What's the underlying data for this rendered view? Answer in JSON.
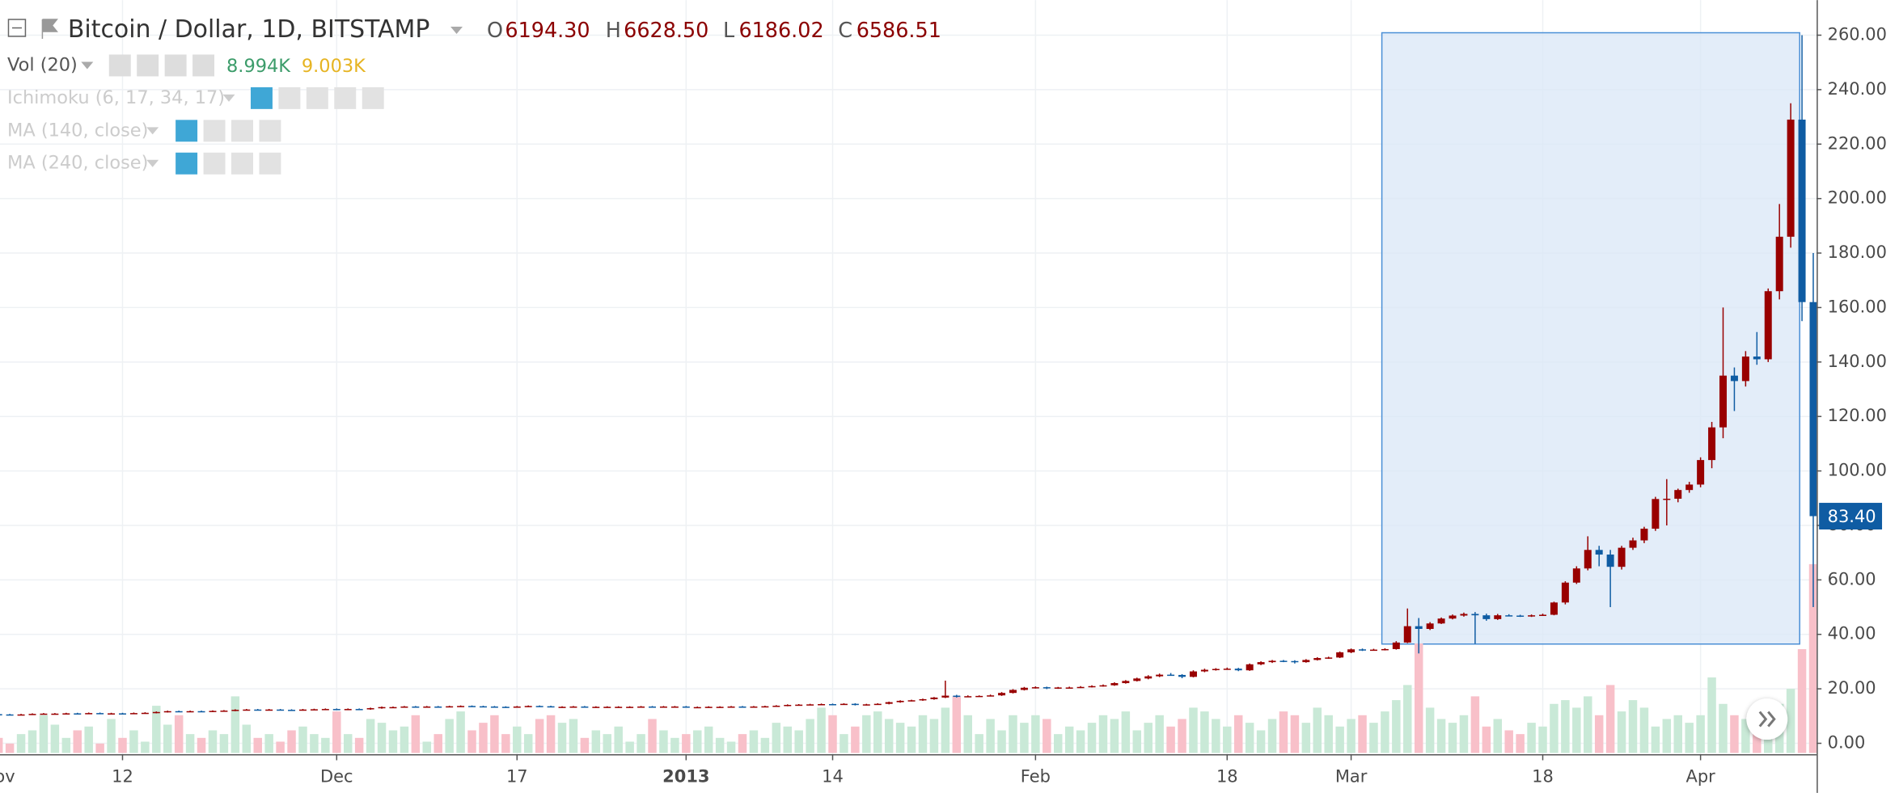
{
  "chart_data": {
    "type": "candlestick",
    "title": "Bitcoin / Dollar, 1D, BITSTAMP",
    "header": {
      "o_label": "O",
      "o": "6194.30",
      "h_label": "H",
      "h": "6628.50",
      "l_label": "L",
      "l": "6186.02",
      "c_label": "C",
      "c": "6586.51"
    },
    "indicators": [
      "Vol (20)",
      "Ichimoku (6, 17, 34, 17)",
      "MA (140, close)",
      "MA (240, close)"
    ],
    "volume_readings": [
      "8.994K",
      "9.003K"
    ],
    "last_label": "83.40",
    "up_color": "#990000",
    "down_color": "#0f5ca3",
    "volume_up_color": "#c9e9d7",
    "volume_down_color": "#f8c0c9",
    "grid": true,
    "xlim": [
      0.13,
      161.3
    ],
    "xticks": [
      {
        "value": 0,
        "label": "Nov"
      },
      {
        "value": 11,
        "label": "12"
      },
      {
        "value": 30,
        "label": "Dec"
      },
      {
        "value": 46,
        "label": "17"
      },
      {
        "value": 61,
        "label": "2013"
      },
      {
        "value": 74,
        "label": "14"
      },
      {
        "value": 92,
        "label": "Feb"
      },
      {
        "value": 109,
        "label": "18"
      },
      {
        "value": 120,
        "label": "Mar"
      },
      {
        "value": 137,
        "label": "18"
      },
      {
        "value": 151,
        "label": "Apr"
      }
    ],
    "ylim": [
      0,
      260
    ],
    "yticks": [
      {
        "value": 0,
        "label": "0.00"
      },
      {
        "value": 20,
        "label": "20.00"
      },
      {
        "value": 40,
        "label": "40.00"
      },
      {
        "value": 60,
        "label": "60.00"
      },
      {
        "value": 80,
        "label": "80.00"
      },
      {
        "value": 100,
        "label": "100.00"
      },
      {
        "value": 120,
        "label": "120.00"
      },
      {
        "value": 140,
        "label": "140.00"
      },
      {
        "value": 160,
        "label": "160.00"
      },
      {
        "value": 180,
        "label": "180.00"
      },
      {
        "value": 200,
        "label": "200.00"
      },
      {
        "value": 220,
        "label": "220.00"
      },
      {
        "value": 240,
        "label": "240.00"
      },
      {
        "value": 260,
        "label": "260.00"
      }
    ],
    "volume_ylim": [
      0,
      100
    ],
    "ohlc": [
      [
        10.7,
        10.9,
        10.4,
        10.6
      ],
      [
        10.6,
        10.8,
        10.3,
        10.5
      ],
      [
        10.5,
        10.8,
        10.3,
        10.6
      ],
      [
        10.6,
        11.0,
        10.4,
        10.8
      ],
      [
        10.8,
        11.1,
        10.6,
        10.9
      ],
      [
        10.9,
        11.1,
        10.7,
        10.9
      ],
      [
        10.9,
        11.2,
        10.7,
        11.0
      ],
      [
        11.0,
        11.2,
        10.7,
        10.9
      ],
      [
        10.9,
        11.3,
        10.7,
        11.1
      ],
      [
        11.1,
        11.3,
        10.8,
        11.0
      ],
      [
        11.0,
        11.2,
        10.8,
        11.0
      ],
      [
        11.0,
        11.2,
        10.7,
        10.9
      ],
      [
        10.9,
        11.3,
        10.7,
        11.1
      ],
      [
        11.1,
        11.4,
        10.9,
        11.2
      ],
      [
        11.2,
        11.7,
        11.0,
        11.5
      ],
      [
        11.5,
        12.0,
        11.3,
        11.8
      ],
      [
        11.8,
        12.0,
        11.5,
        11.7
      ],
      [
        11.7,
        12.0,
        11.5,
        11.8
      ],
      [
        11.8,
        12.0,
        11.5,
        11.7
      ],
      [
        11.7,
        12.1,
        11.5,
        11.9
      ],
      [
        11.9,
        12.2,
        11.7,
        12.0
      ],
      [
        12.0,
        12.5,
        11.8,
        12.3
      ],
      [
        12.3,
        12.6,
        12.1,
        12.4
      ],
      [
        12.4,
        12.6,
        12.1,
        12.3
      ],
      [
        12.3,
        12.6,
        12.1,
        12.4
      ],
      [
        12.4,
        12.6,
        12.1,
        12.3
      ],
      [
        12.3,
        12.5,
        12.0,
        12.2
      ],
      [
        12.2,
        12.6,
        12.0,
        12.4
      ],
      [
        12.4,
        12.7,
        12.2,
        12.5
      ],
      [
        12.5,
        12.8,
        12.3,
        12.6
      ],
      [
        12.6,
        12.8,
        12.3,
        12.5
      ],
      [
        12.5,
        12.8,
        12.3,
        12.6
      ],
      [
        12.6,
        12.8,
        12.3,
        12.5
      ],
      [
        12.5,
        13.1,
        12.3,
        12.9
      ],
      [
        12.9,
        13.5,
        12.7,
        13.3
      ],
      [
        13.3,
        13.5,
        13.1,
        13.3
      ],
      [
        13.3,
        13.7,
        13.1,
        13.5
      ],
      [
        13.5,
        13.7,
        13.2,
        13.4
      ],
      [
        13.4,
        13.7,
        13.2,
        13.5
      ],
      [
        13.5,
        13.7,
        13.2,
        13.4
      ],
      [
        13.4,
        13.8,
        13.2,
        13.6
      ],
      [
        13.6,
        13.9,
        13.4,
        13.7
      ],
      [
        13.7,
        13.9,
        13.4,
        13.6
      ],
      [
        13.6,
        13.8,
        13.3,
        13.5
      ],
      [
        13.5,
        13.7,
        13.2,
        13.4
      ],
      [
        13.4,
        13.6,
        13.1,
        13.3
      ],
      [
        13.3,
        13.7,
        13.1,
        13.5
      ],
      [
        13.5,
        13.9,
        13.3,
        13.7
      ],
      [
        13.7,
        13.9,
        13.4,
        13.6
      ],
      [
        13.6,
        13.8,
        13.2,
        13.4
      ],
      [
        13.4,
        13.6,
        13.2,
        13.4
      ],
      [
        13.4,
        13.7,
        13.2,
        13.5
      ],
      [
        13.5,
        13.7,
        13.1,
        13.3
      ],
      [
        13.3,
        13.6,
        13.1,
        13.4
      ],
      [
        13.4,
        13.6,
        13.2,
        13.4
      ],
      [
        13.4,
        13.6,
        13.2,
        13.4
      ],
      [
        13.4,
        13.6,
        13.2,
        13.4
      ],
      [
        13.4,
        13.7,
        13.2,
        13.5
      ],
      [
        13.5,
        13.7,
        13.2,
        13.4
      ],
      [
        13.4,
        13.7,
        13.2,
        13.5
      ],
      [
        13.5,
        13.7,
        13.3,
        13.5
      ],
      [
        13.5,
        13.7,
        13.1,
        13.3
      ],
      [
        13.3,
        13.5,
        13.1,
        13.3
      ],
      [
        13.3,
        13.6,
        13.1,
        13.4
      ],
      [
        13.4,
        13.6,
        13.2,
        13.4
      ],
      [
        13.4,
        13.7,
        13.2,
        13.5
      ],
      [
        13.5,
        13.7,
        13.2,
        13.4
      ],
      [
        13.4,
        13.7,
        13.2,
        13.5
      ],
      [
        13.5,
        13.8,
        13.3,
        13.6
      ],
      [
        13.6,
        14.0,
        13.4,
        13.8
      ],
      [
        13.8,
        14.3,
        13.6,
        14.1
      ],
      [
        14.1,
        14.4,
        13.9,
        14.2
      ],
      [
        14.2,
        14.5,
        14.0,
        14.3
      ],
      [
        14.3,
        14.6,
        14.1,
        14.4
      ],
      [
        14.4,
        14.6,
        14.1,
        14.3
      ],
      [
        14.3,
        14.7,
        14.1,
        14.5
      ],
      [
        14.5,
        14.7,
        13.9,
        14.1
      ],
      [
        14.1,
        14.5,
        13.9,
        14.3
      ],
      [
        14.3,
        14.7,
        14.1,
        14.5
      ],
      [
        14.5,
        15.3,
        14.3,
        15.1
      ],
      [
        15.1,
        15.8,
        14.9,
        15.6
      ],
      [
        15.6,
        16.0,
        15.4,
        15.8
      ],
      [
        15.8,
        16.4,
        15.6,
        16.2
      ],
      [
        16.2,
        17.0,
        16.0,
        16.8
      ],
      [
        16.8,
        23.0,
        16.6,
        17.5
      ],
      [
        17.5,
        17.8,
        16.8,
        17.2
      ],
      [
        17.2,
        17.6,
        17.0,
        17.3
      ],
      [
        17.3,
        17.6,
        17.1,
        17.4
      ],
      [
        17.4,
        17.9,
        17.2,
        17.6
      ],
      [
        17.6,
        18.8,
        17.4,
        18.5
      ],
      [
        18.5,
        19.9,
        18.3,
        19.6
      ],
      [
        19.6,
        20.7,
        19.4,
        20.4
      ],
      [
        20.4,
        20.9,
        20.1,
        20.6
      ],
      [
        20.6,
        20.8,
        19.9,
        20.3
      ],
      [
        20.3,
        20.7,
        20.0,
        20.5
      ],
      [
        20.5,
        20.8,
        20.2,
        20.5
      ],
      [
        20.5,
        21.0,
        20.3,
        20.7
      ],
      [
        20.7,
        21.3,
        20.5,
        21.0
      ],
      [
        21.0,
        21.6,
        20.8,
        21.3
      ],
      [
        21.3,
        22.4,
        21.1,
        22.1
      ],
      [
        22.1,
        23.2,
        21.9,
        22.9
      ],
      [
        22.9,
        24.1,
        22.7,
        23.8
      ],
      [
        23.8,
        25.0,
        23.5,
        24.6
      ],
      [
        24.6,
        25.6,
        24.3,
        25.2
      ],
      [
        25.2,
        25.8,
        24.8,
        25.1
      ],
      [
        25.1,
        25.4,
        23.9,
        24.4
      ],
      [
        24.4,
        26.8,
        24.2,
        26.4
      ],
      [
        26.4,
        27.4,
        26.1,
        27.0
      ],
      [
        27.0,
        27.6,
        26.7,
        27.3
      ],
      [
        27.3,
        27.8,
        27.0,
        27.4
      ],
      [
        27.4,
        27.7,
        26.5,
        26.8
      ],
      [
        26.8,
        29.3,
        26.6,
        29.0
      ],
      [
        29.0,
        30.1,
        28.7,
        29.8
      ],
      [
        29.8,
        30.6,
        29.5,
        30.3
      ],
      [
        30.3,
        30.6,
        29.8,
        30.2
      ],
      [
        30.2,
        30.5,
        29.3,
        29.8
      ],
      [
        29.8,
        30.9,
        29.6,
        30.6
      ],
      [
        30.6,
        31.6,
        30.4,
        31.3
      ],
      [
        31.3,
        31.8,
        31.0,
        31.5
      ],
      [
        31.5,
        33.7,
        31.3,
        33.4
      ],
      [
        33.4,
        34.8,
        33.1,
        34.5
      ],
      [
        34.5,
        34.8,
        33.9,
        34.3
      ],
      [
        34.3,
        34.7,
        34.0,
        34.4
      ],
      [
        34.4,
        34.9,
        34.1,
        34.6
      ],
      [
        34.6,
        37.5,
        34.4,
        37.0
      ],
      [
        37.0,
        49.5,
        36.8,
        43.0
      ],
      [
        43.0,
        46.0,
        33.0,
        42.0
      ],
      [
        42.0,
        44.5,
        41.6,
        44.0
      ],
      [
        44.0,
        46.2,
        43.8,
        45.8
      ],
      [
        45.8,
        47.3,
        45.5,
        46.9
      ],
      [
        46.9,
        48.0,
        46.5,
        47.5
      ],
      [
        47.5,
        48.2,
        36.5,
        47.0
      ],
      [
        47.0,
        47.6,
        45.0,
        45.6
      ],
      [
        45.6,
        47.5,
        45.3,
        47.0
      ],
      [
        47.0,
        47.4,
        46.6,
        46.9
      ],
      [
        46.9,
        47.2,
        46.4,
        46.7
      ],
      [
        46.7,
        47.3,
        46.4,
        47.0
      ],
      [
        47.0,
        47.6,
        46.8,
        47.2
      ],
      [
        47.2,
        52.0,
        47.0,
        51.7
      ],
      [
        51.7,
        59.5,
        51.0,
        59.0
      ],
      [
        59.0,
        65.0,
        58.5,
        64.2
      ],
      [
        64.2,
        76.0,
        63.5,
        71.0
      ],
      [
        71.0,
        72.5,
        65.0,
        69.3
      ],
      [
        69.3,
        71.0,
        50.0,
        64.8
      ],
      [
        64.8,
        72.5,
        63.8,
        71.8
      ],
      [
        71.8,
        75.5,
        71.0,
        74.5
      ],
      [
        74.5,
        79.5,
        73.5,
        78.8
      ],
      [
        78.8,
        90.5,
        78.0,
        89.7
      ],
      [
        89.7,
        97.0,
        80.0,
        89.8
      ],
      [
        89.8,
        93.5,
        88.5,
        93.0
      ],
      [
        93.0,
        96.0,
        92.0,
        95.0
      ],
      [
        95.0,
        105.0,
        94.0,
        104.0
      ],
      [
        104.0,
        118.0,
        101.0,
        116.0
      ],
      [
        116.0,
        160.0,
        112.0,
        135.0
      ],
      [
        135.0,
        138.0,
        122.0,
        133.0
      ],
      [
        133.0,
        144.0,
        131.0,
        142.0
      ],
      [
        142.0,
        151.0,
        139.0,
        141.0
      ],
      [
        141.0,
        167.0,
        140.0,
        166.0
      ],
      [
        166.0,
        198.0,
        163.0,
        186.0
      ],
      [
        186.0,
        235.0,
        182.0,
        229.0
      ],
      [
        229.0,
        260.0,
        155.0,
        162.0
      ],
      [
        162.0,
        180.0,
        50.0,
        83.4
      ]
    ],
    "volume": [
      8,
      5,
      10,
      12,
      20,
      15,
      8,
      12,
      14,
      5,
      18,
      8,
      12,
      6,
      25,
      15,
      20,
      10,
      8,
      12,
      10,
      30,
      15,
      8,
      10,
      6,
      12,
      14,
      10,
      8,
      22,
      10,
      8,
      18,
      16,
      12,
      14,
      20,
      6,
      10,
      18,
      22,
      12,
      16,
      20,
      10,
      14,
      10,
      18,
      20,
      16,
      18,
      8,
      12,
      10,
      14,
      6,
      10,
      18,
      12,
      8,
      10,
      12,
      14,
      8,
      6,
      10,
      12,
      8,
      16,
      14,
      12,
      18,
      24,
      20,
      10,
      14,
      20,
      22,
      18,
      16,
      14,
      20,
      18,
      24,
      30,
      20,
      10,
      18,
      12,
      20,
      16,
      20,
      18,
      10,
      14,
      12,
      16,
      20,
      18,
      22,
      12,
      16,
      20,
      14,
      18,
      24,
      22,
      18,
      14,
      20,
      16,
      12,
      18,
      22,
      20,
      16,
      24,
      20,
      14,
      18,
      20,
      16,
      22,
      28,
      36,
      58,
      24,
      18,
      16,
      20,
      30,
      14,
      18,
      12,
      10,
      16,
      14,
      26,
      28,
      24,
      30,
      20,
      36,
      22,
      28,
      24,
      14,
      18,
      20,
      16,
      20,
      40,
      26,
      20,
      18,
      14,
      28,
      26,
      34,
      55,
      100
    ]
  }
}
